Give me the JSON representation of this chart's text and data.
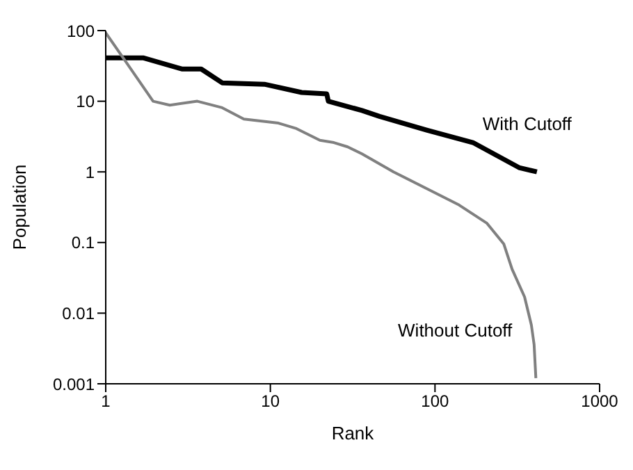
{
  "chart_data": {
    "type": "line",
    "xlabel": "Rank",
    "ylabel": "Population",
    "log": "xy",
    "xlim": [
      1,
      1000
    ],
    "xticks": [
      1,
      10,
      100,
      1000
    ],
    "ylim": [
      0.001,
      100
    ],
    "yticks": [
      0.001,
      0.01,
      0.1,
      1,
      10,
      100
    ],
    "marker": "none",
    "line_style": "solid",
    "series": [
      {
        "name": "With Cutoff",
        "color": "#000000",
        "x": [
          1,
          1.7,
          2.9,
          3.8,
          5.1,
          9.2,
          15.5,
          22,
          22.5,
          36,
          46,
          89,
          170,
          324,
          416
        ],
        "values": [
          41,
          41,
          28.6,
          28.6,
          18.2,
          17.4,
          13.3,
          12.7,
          10,
          7.4,
          6.1,
          3.9,
          2.6,
          1.15,
          1.0
        ]
      },
      {
        "name": "Without Cutoff",
        "color": "#808080",
        "x": [
          1,
          1.31,
          1.94,
          2.45,
          3.6,
          5.1,
          6.9,
          11.2,
          14.4,
          20,
          24.3,
          29.5,
          36,
          56,
          89,
          140,
          207,
          262,
          294,
          350,
          385,
          400,
          410
        ],
        "values": [
          93,
          37.6,
          10,
          8.8,
          10,
          8.1,
          5.6,
          4.9,
          4.1,
          2.8,
          2.6,
          2.26,
          1.8,
          1.0,
          0.58,
          0.34,
          0.187,
          0.095,
          0.042,
          0.017,
          0.0068,
          0.0036,
          0.0012
        ]
      }
    ]
  }
}
